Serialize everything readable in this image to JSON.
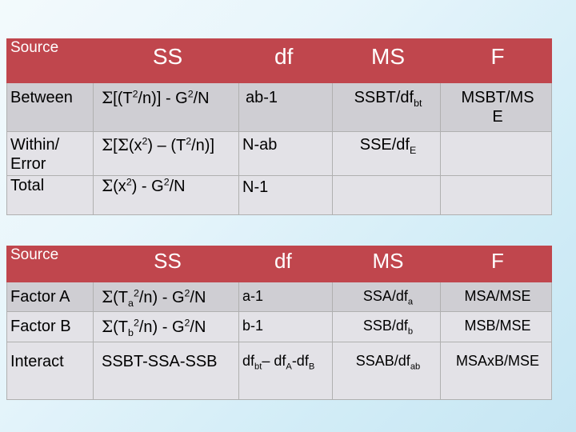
{
  "table1": {
    "header": {
      "source": "Source",
      "ss": "SS",
      "df": "df",
      "ms": "MS",
      "f": "F"
    },
    "between": {
      "label": "Between",
      "ss": {
        "a": "Σ",
        "b": "[(T",
        "c": "2",
        "d": "/n)] - G",
        "e": "2",
        "f": "/N"
      },
      "df": "ab-1",
      "ms": {
        "a": "SSBT/df",
        "b": "bt"
      },
      "f_line1": "MSBT/MS",
      "f_line2": "E"
    },
    "within": {
      "label_line1": "Within/",
      "label_line2": "Error",
      "ss": {
        "a": "Σ",
        "b": "[",
        "c": "Σ",
        "d": "(x",
        "e": "2",
        "f": ") – (T",
        "g": "2",
        "h": "/n)]"
      },
      "df": "N-ab",
      "ms": {
        "a": "SSE/df",
        "b": "E"
      }
    },
    "total": {
      "label": "Total",
      "ss": {
        "a": "Σ",
        "b": "(x",
        "c": "2",
        "d": ") - G",
        "e": "2",
        "f": "/N"
      },
      "df": "N-1"
    }
  },
  "table2": {
    "header": {
      "source": "Source",
      "ss": "SS",
      "df": "df",
      "ms": "MS",
      "f": "F"
    },
    "factor_a": {
      "label": "Factor A",
      "ss": {
        "a": "Σ",
        "b": "(T",
        "c": "a",
        "d": "2",
        "e": "/n) - G",
        "f": "2",
        "g": "/N"
      },
      "df": "a-1",
      "ms": {
        "a": "SSA/df",
        "b": "a"
      },
      "f": "MSA/MSE"
    },
    "factor_b": {
      "label": "Factor B",
      "ss": {
        "a": "Σ",
        "b": "(T",
        "c": "b",
        "d": "2",
        "e": "/n) - G",
        "f": "2",
        "g": "/N"
      },
      "df": "b-1",
      "ms": {
        "a": "SSB/df",
        "b": "b"
      },
      "f": "MSB/MSE"
    },
    "interact": {
      "label": "Interact",
      "ss": "SSBT-SSA-SSB",
      "df": {
        "a": "df",
        "b": "bt",
        "c": "– df",
        "d": "A",
        "e": "-df",
        "f": "B"
      },
      "ms": {
        "a": "SSAB/df",
        "b": "ab"
      },
      "f": "MSAxB/MSE"
    }
  }
}
